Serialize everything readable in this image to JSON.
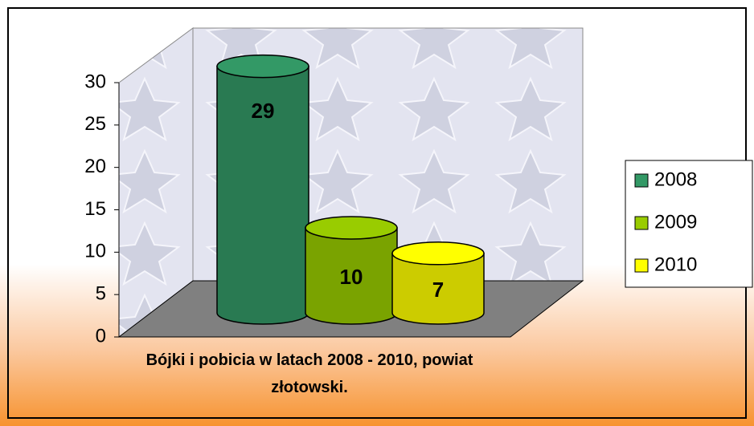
{
  "chart_data": {
    "type": "bar3d",
    "categories": [
      "Bójki i pobicia w latach 2008 - 2010, powiat złotowski."
    ],
    "series": [
      {
        "name": "2008",
        "color": "#339966",
        "values": [
          29
        ]
      },
      {
        "name": "2009",
        "color": "#99cc00",
        "values": [
          10
        ]
      },
      {
        "name": "2010",
        "color": "#ffff00",
        "values": [
          7
        ]
      }
    ],
    "ylim": [
      0,
      30
    ],
    "yticks": [
      0,
      5,
      10,
      15,
      20,
      25,
      30
    ],
    "legend": "right"
  }
}
